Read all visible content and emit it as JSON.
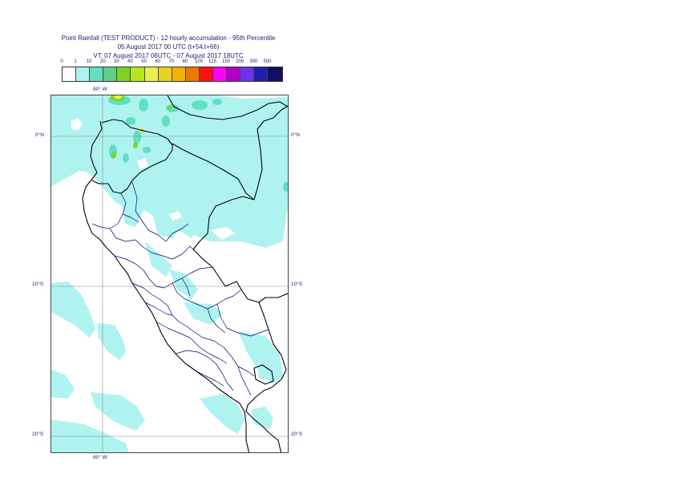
{
  "title": {
    "line1": "Point Rainfall (TEST PRODUCT) - 12 hourly accumulation - 95th Percentile",
    "line2": "05 August 2017 00 UTC (t+54,t+66)",
    "line3": "VT: 07 August 2017 06UTC - 07 August 2017 18UTC"
  },
  "scale": {
    "labels": [
      "0",
      "1",
      "10",
      "20",
      "30",
      "40",
      "50",
      "60",
      "70",
      "80",
      "100",
      "125",
      "150",
      "200",
      "300",
      "500"
    ],
    "colors": [
      "#ffffff",
      "#aef3f0",
      "#5fe0c0",
      "#5fd084",
      "#7ed321",
      "#b6e61d",
      "#e8f050",
      "#e8d020",
      "#f5b000",
      "#f07800",
      "#ff1010",
      "#ff00ff",
      "#b000c8",
      "#7030f0",
      "#2020b0",
      "#101060"
    ]
  },
  "axes": {
    "lon_top": "80° W",
    "lon_bottom": "80° W",
    "lat_left": [
      "0°N",
      "10°S",
      "20°S"
    ],
    "lat_right": [
      "0°N",
      "10°S",
      "20°S"
    ]
  },
  "colors": {
    "rain_light": "#aef3f0",
    "rain_med": "#5fe0c0",
    "rain_green": "#7ed321",
    "border": "#000080",
    "coast": "#000000",
    "grid": "#8a8a8a"
  }
}
